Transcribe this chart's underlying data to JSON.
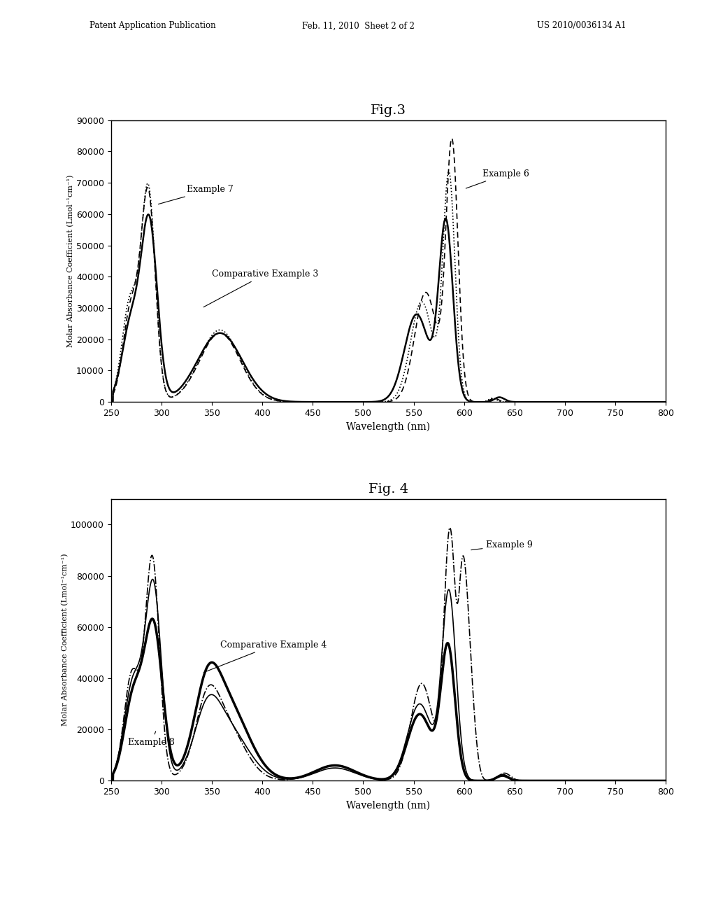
{
  "header_left": "Patent Application Publication",
  "header_center": "Feb. 11, 2010  Sheet 2 of 2",
  "header_right": "US 2010/0036134 A1",
  "fig3_title": "Fig.3",
  "fig4_title": "Fig. 4",
  "ylabel": "Molar Absorbance Coefficient (Lmol⁻¹cm⁻¹)",
  "xlabel": "Wavelength (nm)",
  "fig3_ylim": [
    0,
    90000
  ],
  "fig4_ylim": [
    0,
    110000
  ],
  "xlim": [
    250,
    800
  ],
  "xticks": [
    250,
    300,
    350,
    400,
    450,
    500,
    550,
    600,
    650,
    700,
    750,
    800
  ],
  "fig3_yticks": [
    0,
    10000,
    20000,
    30000,
    40000,
    50000,
    60000,
    70000,
    80000,
    90000
  ],
  "fig4_yticks": [
    0,
    20000,
    40000,
    60000,
    80000,
    100000
  ],
  "background_color": "#ffffff",
  "line_color": "#000000"
}
